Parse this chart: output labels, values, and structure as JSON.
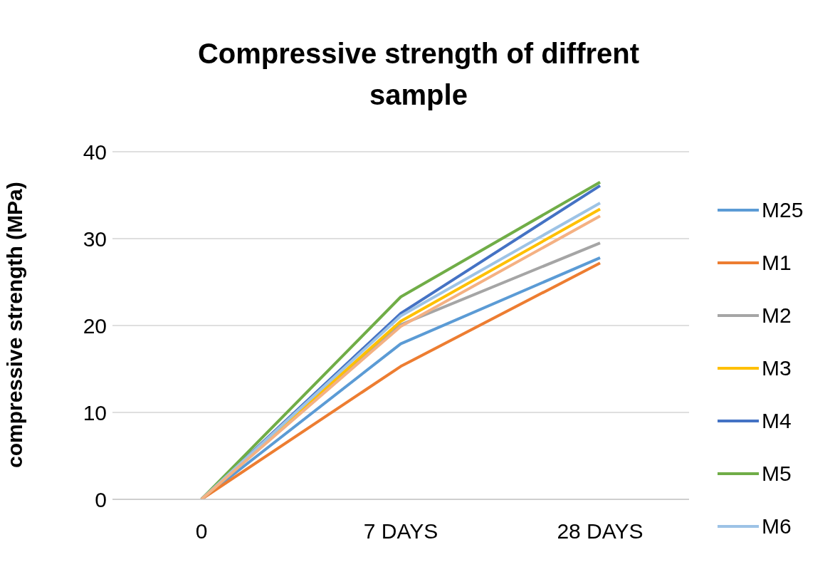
{
  "chart_data": {
    "type": "line",
    "title": "Compressive strength of diffrent sample",
    "ylabel": "compressive strength (MPa)",
    "categories": [
      "0",
      "7 DAYS",
      "28 DAYS"
    ],
    "series": [
      {
        "name": "M25",
        "color": "#5b9bd5",
        "values": [
          0,
          17.9,
          27.8
        ]
      },
      {
        "name": "M1",
        "color": "#ed7d31",
        "values": [
          0,
          15.3,
          27.2
        ]
      },
      {
        "name": "M2",
        "color": "#a5a5a5",
        "values": [
          0,
          20.1,
          29.5
        ]
      },
      {
        "name": "M3",
        "color": "#ffc000",
        "values": [
          0,
          20.5,
          33.4
        ]
      },
      {
        "name": "M4",
        "color": "#4472c4",
        "values": [
          0,
          21.4,
          36.1
        ]
      },
      {
        "name": "M5",
        "color": "#70ad47",
        "values": [
          0,
          23.3,
          36.5
        ]
      },
      {
        "name": "M6",
        "color": "#9dc3e6",
        "values": [
          0,
          21.1,
          34.1
        ]
      },
      {
        "color": "#f4b183",
        "values": [
          0,
          19.9,
          32.6
        ]
      }
    ],
    "ylim": [
      0,
      40
    ],
    "yticks": [
      0,
      10,
      20,
      30,
      40
    ],
    "grid": "y",
    "legend": "right",
    "marker": "none",
    "line_style": "solid"
  }
}
